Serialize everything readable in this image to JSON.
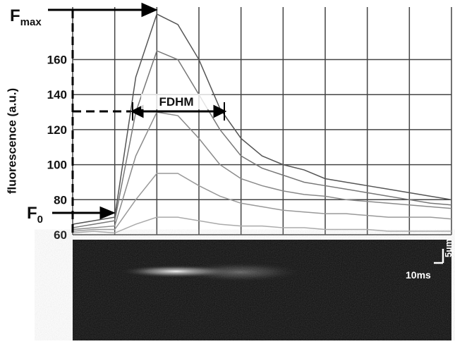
{
  "chart_data": {
    "type": "line",
    "y_label": "fluorescence  (a.u.)",
    "x": [
      0,
      5,
      10,
      15,
      20,
      25,
      30,
      35,
      40,
      45,
      50,
      55,
      60,
      65,
      70,
      75,
      80,
      85,
      90
    ],
    "series": [
      {
        "color": "#555555",
        "values": [
          66,
          68,
          70,
          150,
          186,
          180,
          160,
          132,
          115,
          105,
          100,
          97,
          92,
          90,
          88,
          86,
          84,
          82,
          80
        ]
      },
      {
        "color": "#777777",
        "values": [
          64,
          66,
          68,
          130,
          165,
          160,
          140,
          120,
          105,
          98,
          94,
          90,
          88,
          86,
          84,
          82,
          80,
          78,
          77
        ]
      },
      {
        "color": "#8a8a8a",
        "values": [
          63,
          64,
          65,
          105,
          130,
          128,
          115,
          100,
          92,
          88,
          85,
          83,
          82,
          80,
          79,
          78,
          77,
          76,
          75
        ]
      },
      {
        "color": "#999999",
        "values": [
          62,
          63,
          63,
          80,
          95,
          95,
          88,
          82,
          78,
          76,
          74,
          73,
          72,
          72,
          71,
          70,
          70,
          70,
          69
        ]
      },
      {
        "color": "#aaaaaa",
        "values": [
          61,
          62,
          61,
          66,
          70,
          70,
          68,
          66,
          65,
          65,
          64,
          64,
          63,
          63,
          63,
          62,
          62,
          62,
          62
        ]
      }
    ],
    "xlim": [
      0,
      90
    ],
    "xticks": [
      0,
      10,
      20,
      30,
      40,
      50,
      60,
      70,
      80,
      90
    ],
    "ylim": [
      60,
      190
    ],
    "yticks": [
      60,
      80,
      100,
      120,
      140,
      160
    ],
    "grid": true,
    "annotations": {
      "fmax_main": "F",
      "fmax_sub": "max",
      "f0_main": "F",
      "f0_sub": "0",
      "fdhm": "FDHM",
      "time_bar": "10ms",
      "space_bar": "5µm"
    }
  }
}
